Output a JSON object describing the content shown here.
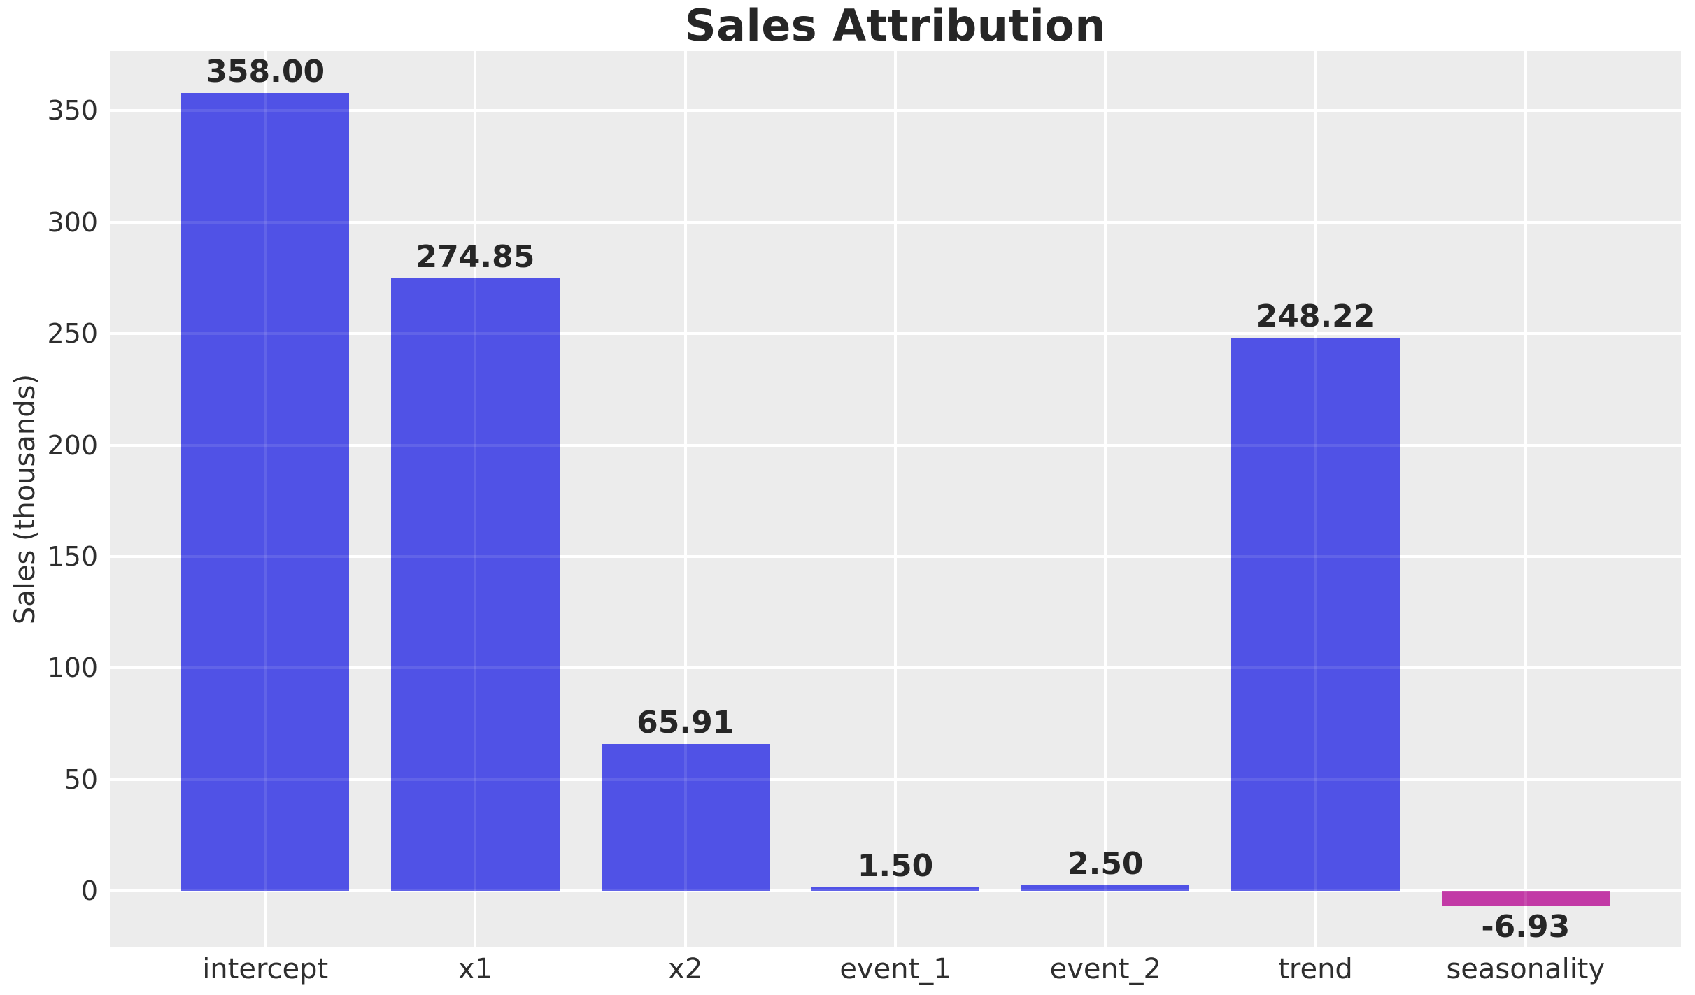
{
  "chart_data": {
    "type": "bar",
    "title": "Sales Attribution",
    "ylabel": "Sales (thousands)",
    "xlabel": "",
    "categories": [
      "intercept",
      "x1",
      "x2",
      "event_1",
      "event_2",
      "trend",
      "seasonality"
    ],
    "values": [
      358.0,
      274.85,
      65.91,
      1.5,
      2.5,
      248.22,
      -6.93
    ],
    "value_labels": [
      "358.00",
      "274.85",
      "65.91",
      "1.50",
      "2.50",
      "248.22",
      "-6.93"
    ],
    "yticks": [
      0,
      50,
      100,
      150,
      200,
      250,
      300,
      350
    ],
    "ytick_labels": [
      "0",
      "50",
      "100",
      "150",
      "200",
      "250",
      "300",
      "350"
    ],
    "ylim": [
      -25.4,
      376.8
    ],
    "grid": true,
    "legend": false,
    "colors": {
      "positive_bar": "#5052E6",
      "negative_bar": "#C23AA6",
      "plot_background": "#ECECEC",
      "gridline": "#FFFFFF",
      "tick_text": "#2E2E2E",
      "value_label_text": "#262626",
      "figure_background": "#FFFFFF"
    }
  }
}
